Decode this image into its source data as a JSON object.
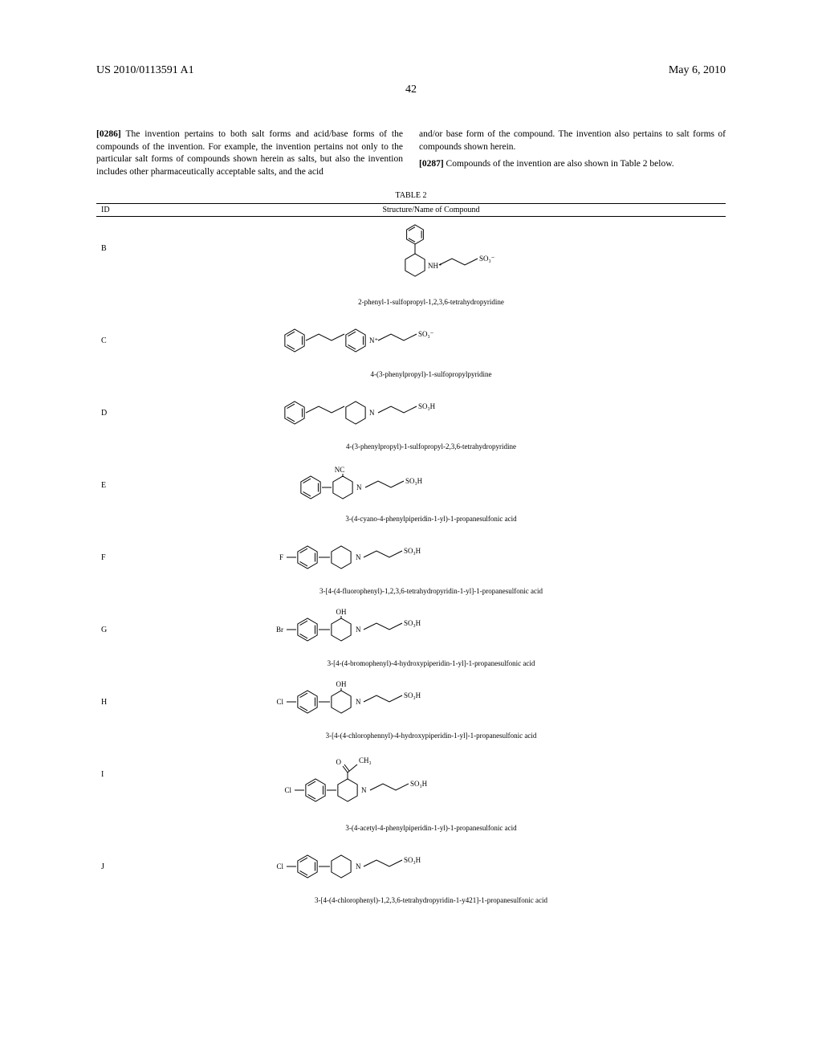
{
  "header": {
    "left": "US 2010/0113591 A1",
    "right": "May 6, 2010"
  },
  "page_number": "42",
  "left_paragraph": {
    "num": "[0286]",
    "text": " The invention pertains to both salt forms and acid/base forms of the compounds of the invention. For example, the invention pertains not only to the particular salt forms of compounds shown herein as salts, but also the invention includes other pharmaceutically acceptable salts, and the acid"
  },
  "right_paragraph_1": "and/or base form of the compound. The invention also pertains to salt forms of compounds shown herein.",
  "right_paragraph_2": {
    "num": "[0287]",
    "text": " Compounds of the invention are also shown in Table 2 below."
  },
  "table": {
    "caption": "TABLE 2",
    "head_id": "ID",
    "head_name": "Structure/Name of Compound",
    "rows": [
      {
        "id": "B",
        "name": "2-phenyl-1-sulfopropyl-1,2,3,6-tetrahydropyridine",
        "tall": true
      },
      {
        "id": "C",
        "name": "4-(3-phenylpropyl)-1-sulfopropylpyridine",
        "tall": false
      },
      {
        "id": "D",
        "name": "4-(3-phenylpropyl)-1-sulfopropyl-2,3,6-tetrahydropyridine",
        "tall": false
      },
      {
        "id": "E",
        "name": "3-(4-cyano-4-phenylpiperidin-1-yl)-1-propanesulfonic acid",
        "tall": false
      },
      {
        "id": "F",
        "name": "3-[4-(4-fluorophenyl)-1,2,3,6-tetrahydropyridin-1-yl]-1-propanesulfonic acid",
        "tall": false
      },
      {
        "id": "G",
        "name": "3-[4-(4-bromophenyl)-4-hydroxypiperidin-1-yl]-1-propanesulfonic acid",
        "tall": false
      },
      {
        "id": "H",
        "name": "3-[4-(4-chlorophennyl)-4-hydroxypiperidin-1-yl]-1-propanesulfonic acid",
        "tall": false
      },
      {
        "id": "I",
        "name": "3-(4-acetyl-4-phenylpiperidin-1-yl)-1-propanesulfonic acid",
        "tall": true
      },
      {
        "id": "J",
        "name": "3-[4-(4-chlorophenyl)-1,2,3,6-tetrahydropyridin-1-y421]-1-propanesulfonic acid",
        "tall": false
      }
    ]
  }
}
